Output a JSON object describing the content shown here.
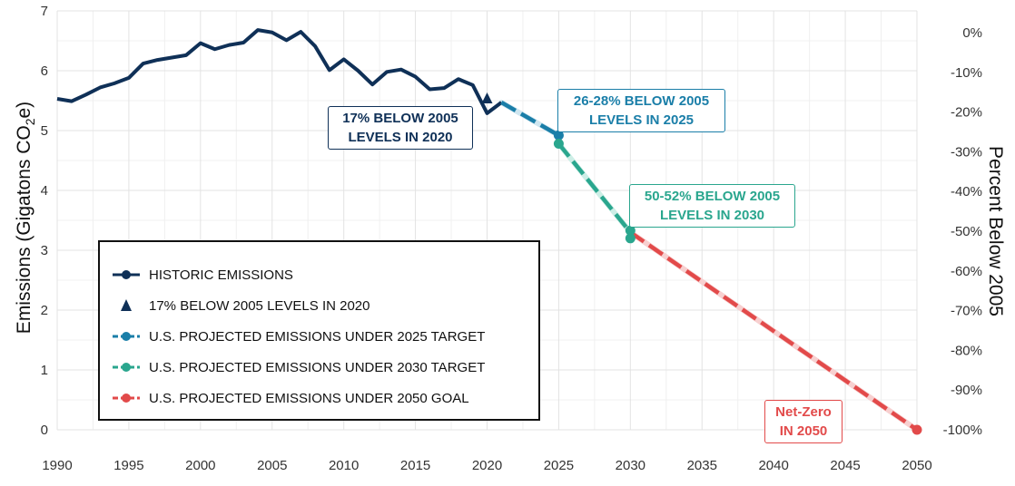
{
  "chart_data": {
    "type": "line",
    "xlim": [
      1990,
      2050
    ],
    "x_ticks": [
      1990,
      1995,
      2000,
      2005,
      2010,
      2015,
      2020,
      2025,
      2030,
      2035,
      2040,
      2045,
      2050
    ],
    "ylim": [
      0,
      7
    ],
    "y_ticks": [
      0,
      1,
      2,
      3,
      4,
      5,
      6,
      7
    ],
    "ylabel": "Emissions (Gigatons CO2e)",
    "ylabel_parts": {
      "pre": "Emissions (Gigatons CO",
      "sub": "2",
      "post": "e)"
    },
    "y2label": "Percent Below 2005",
    "y2_ticks": [
      "0%",
      "-10%",
      "-20%",
      "-30%",
      "-40%",
      "-50%",
      "-60%",
      "-70%",
      "-80%",
      "-90%",
      "-100%"
    ],
    "grid": true,
    "series": [
      {
        "name": "HISTORIC EMISSIONS",
        "color": "#0f3057",
        "style": "solid",
        "x": [
          1990,
          1991,
          1992,
          1993,
          1994,
          1995,
          1996,
          1997,
          1998,
          1999,
          2000,
          2001,
          2002,
          2003,
          2004,
          2005,
          2006,
          2007,
          2008,
          2009,
          2010,
          2011,
          2012,
          2013,
          2014,
          2015,
          2016,
          2017,
          2018,
          2019,
          2020,
          2021
        ],
        "y": [
          5.53,
          5.49,
          5.6,
          5.72,
          5.79,
          5.88,
          6.12,
          6.18,
          6.22,
          6.26,
          6.46,
          6.36,
          6.43,
          6.47,
          6.68,
          6.64,
          6.51,
          6.65,
          6.41,
          6.01,
          6.19,
          6.0,
          5.77,
          5.98,
          6.02,
          5.9,
          5.69,
          5.71,
          5.86,
          5.76,
          5.29,
          5.47
        ]
      },
      {
        "name": "U.S. PROJECTED EMISSIONS UNDER 2025 TARGET",
        "color": "#1a7ea8",
        "style": "dashed",
        "x": [
          2021,
          2025
        ],
        "y": [
          5.47,
          4.92
        ]
      },
      {
        "name": "U.S. PROJECTED EMISSIONS UNDER 2030 TARGET",
        "color": "#2aa68e",
        "style": "dashed",
        "x": [
          2025,
          2030
        ],
        "y": [
          4.78,
          3.3
        ]
      },
      {
        "name": "U.S. PROJECTED EMISSIONS UNDER 2050 GOAL",
        "color": "#e24a4a",
        "style": "dashed",
        "x": [
          2030,
          2050
        ],
        "y": [
          3.3,
          0.0
        ]
      }
    ],
    "markers": [
      {
        "x": 2020,
        "y": 5.53,
        "shape": "triangle",
        "color": "#0f3057"
      },
      {
        "x": 2025,
        "y": 4.92,
        "shape": "circle",
        "color": "#1a7ea8"
      },
      {
        "x": 2025,
        "y": 4.78,
        "shape": "circle",
        "color": "#2aa68e"
      },
      {
        "x": 2030,
        "y": 3.33,
        "shape": "circle",
        "color": "#2aa68e"
      },
      {
        "x": 2030,
        "y": 3.2,
        "shape": "circle",
        "color": "#2aa68e"
      },
      {
        "x": 2050,
        "y": 0.0,
        "shape": "circle",
        "color": "#e24a4a"
      }
    ],
    "annotations": [
      {
        "line1": "17% BELOW 2005",
        "line2": "LEVELS IN 2020",
        "color": "#0f3057"
      },
      {
        "line1": "26-28% BELOW 2005",
        "line2": "LEVELS IN 2025",
        "color": "#1a7ea8"
      },
      {
        "line1": "50-52% BELOW 2005",
        "line2": "LEVELS IN 2030",
        "color": "#2aa68e"
      },
      {
        "line1": "Net-Zero",
        "line2": "IN 2050",
        "color": "#e24a4a"
      }
    ]
  },
  "legend": {
    "items": [
      {
        "label": "HISTORIC EMISSIONS",
        "color": "#0f3057",
        "symbol": "line-circle"
      },
      {
        "label": "17% BELOW 2005 LEVELS IN 2020",
        "color": "#0f3057",
        "symbol": "triangle"
      },
      {
        "label": "U.S. PROJECTED EMISSIONS UNDER 2025 TARGET",
        "color": "#1a7ea8",
        "symbol": "dash-circle"
      },
      {
        "label": "U.S. PROJECTED EMISSIONS UNDER 2030 TARGET",
        "color": "#2aa68e",
        "symbol": "dash-circle"
      },
      {
        "label": "U.S. PROJECTED EMISSIONS UNDER 2050 GOAL",
        "color": "#e24a4a",
        "symbol": "dash-circle"
      }
    ]
  }
}
